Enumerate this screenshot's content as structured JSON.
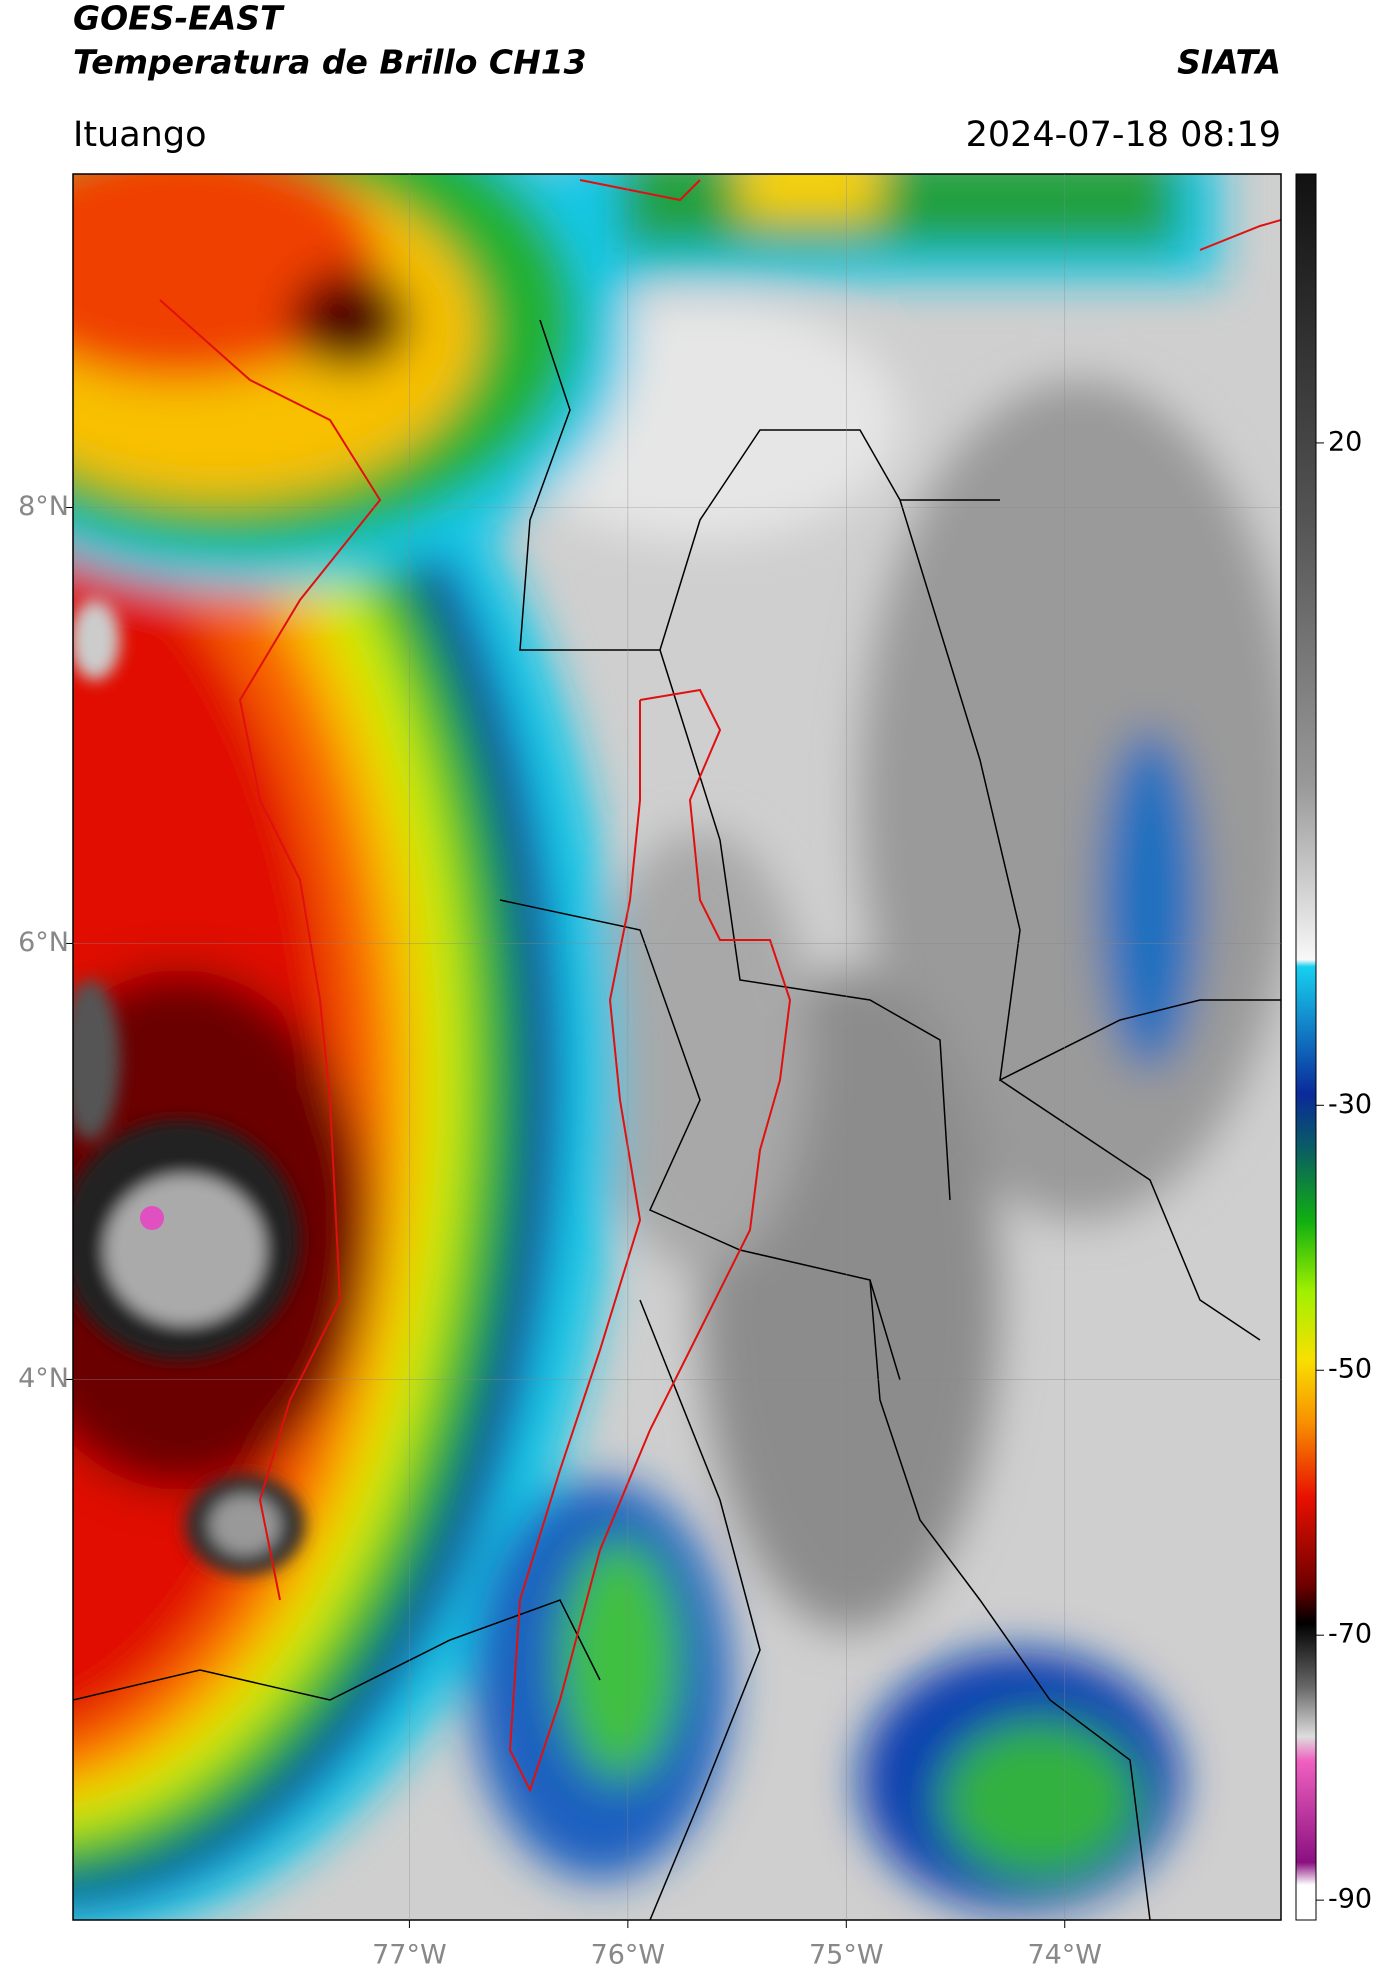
{
  "header": {
    "title": "GOES-EAST",
    "subtitle": "Temperatura de Brillo CH13",
    "brand": "SIATA",
    "region": "Ituango",
    "datetime": "2024-07-18 08:19"
  },
  "map": {
    "type": "satellite-map",
    "xlim": [
      -78.54,
      -73.01
    ],
    "ylim": [
      1.52,
      9.53
    ],
    "xticks": [
      {
        "value": -77,
        "label": "77°W"
      },
      {
        "value": -76,
        "label": "76°W"
      },
      {
        "value": -75,
        "label": "75°W"
      },
      {
        "value": -74,
        "label": "74°W"
      }
    ],
    "yticks": [
      {
        "value": 8,
        "label": "8°N"
      },
      {
        "value": 6,
        "label": "6°N"
      },
      {
        "value": 4,
        "label": "4°N"
      }
    ],
    "grid": true,
    "colorbar": {
      "lim": [
        -91.5,
        40.3
      ],
      "ticks": [
        20,
        -30,
        -50,
        -70,
        -90
      ]
    }
  }
}
